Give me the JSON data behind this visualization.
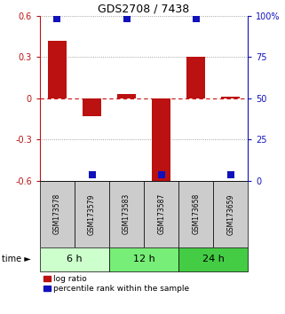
{
  "title": "GDS2708 / 7438",
  "samples": [
    "GSM173578",
    "GSM173579",
    "GSM173583",
    "GSM173587",
    "GSM173658",
    "GSM173659"
  ],
  "log_ratio": [
    0.42,
    -0.13,
    0.03,
    -0.6,
    0.3,
    0.01
  ],
  "percentile_rank": [
    98,
    4,
    98,
    4,
    98,
    4
  ],
  "ylim_left": [
    -0.6,
    0.6
  ],
  "ylim_right": [
    0,
    100
  ],
  "yticks_left": [
    -0.6,
    -0.3,
    0.0,
    0.3,
    0.6
  ],
  "yticks_right": [
    0,
    25,
    50,
    75,
    100
  ],
  "ytick_labels_left": [
    "-0.6",
    "-0.3",
    "0",
    "0.3",
    "0.6"
  ],
  "ytick_labels_right": [
    "0",
    "25",
    "50",
    "75",
    "100%"
  ],
  "time_groups": [
    {
      "label": "6 h",
      "start": 0,
      "end": 2,
      "color": "#ccffcc"
    },
    {
      "label": "12 h",
      "start": 2,
      "end": 4,
      "color": "#77ee77"
    },
    {
      "label": "24 h",
      "start": 4,
      "end": 6,
      "color": "#44cc44"
    }
  ],
  "bar_color": "#bb1111",
  "dot_color": "#1111bb",
  "bar_width": 0.55,
  "dot_size": 28,
  "grid_dotted_color": "#888888",
  "zero_line_color": "#cc1111",
  "background_color": "#ffffff",
  "sample_box_color": "#cccccc",
  "legend_labels": [
    "log ratio",
    "percentile rank within the sample"
  ],
  "title_fontsize": 9,
  "tick_fontsize": 7,
  "sample_fontsize": 5.5,
  "time_fontsize": 8,
  "legend_fontsize": 6.5
}
